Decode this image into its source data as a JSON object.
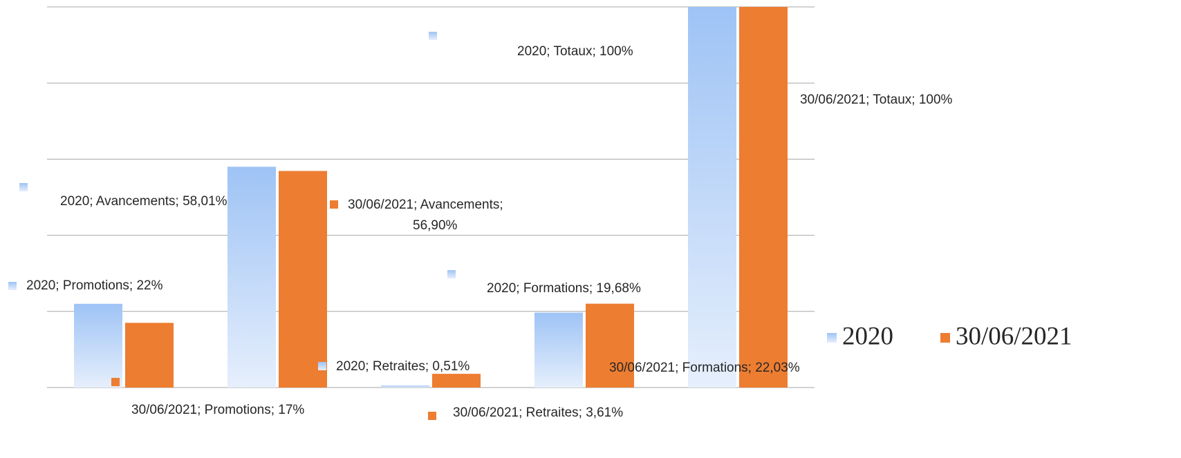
{
  "chart_data": {
    "type": "bar",
    "categories": [
      "Promotions",
      "Avancements",
      "Retraites",
      "Formations",
      "Totaux"
    ],
    "series": [
      {
        "name": "2020",
        "color": "#9ec3f5",
        "values": [
          22,
          58.01,
          0.51,
          19.68,
          100
        ],
        "value_labels": [
          "2020; Promotions; 22%",
          "2020; Avancements; 58,01%",
          "2020; Retraites; 0,51%",
          "2020; Formations; 19,68%",
          "2020; Totaux; 100%"
        ]
      },
      {
        "name": "30/06/2021",
        "color": "#ed7d31",
        "values": [
          17,
          56.9,
          3.61,
          22.03,
          100
        ],
        "value_labels": [
          "30/06/2021; Promotions; 17%",
          "30/06/2021; Avancements; 56,90%",
          "30/06/2021; Retraites; 3,61%",
          "30/06/2021; Formations; 22,03%",
          "30/06/2021; Totaux; 100%"
        ]
      }
    ],
    "ylim": [
      0,
      100
    ],
    "yticks": [
      0,
      20,
      40,
      60,
      80,
      100
    ],
    "grid": true,
    "legend": "right"
  }
}
